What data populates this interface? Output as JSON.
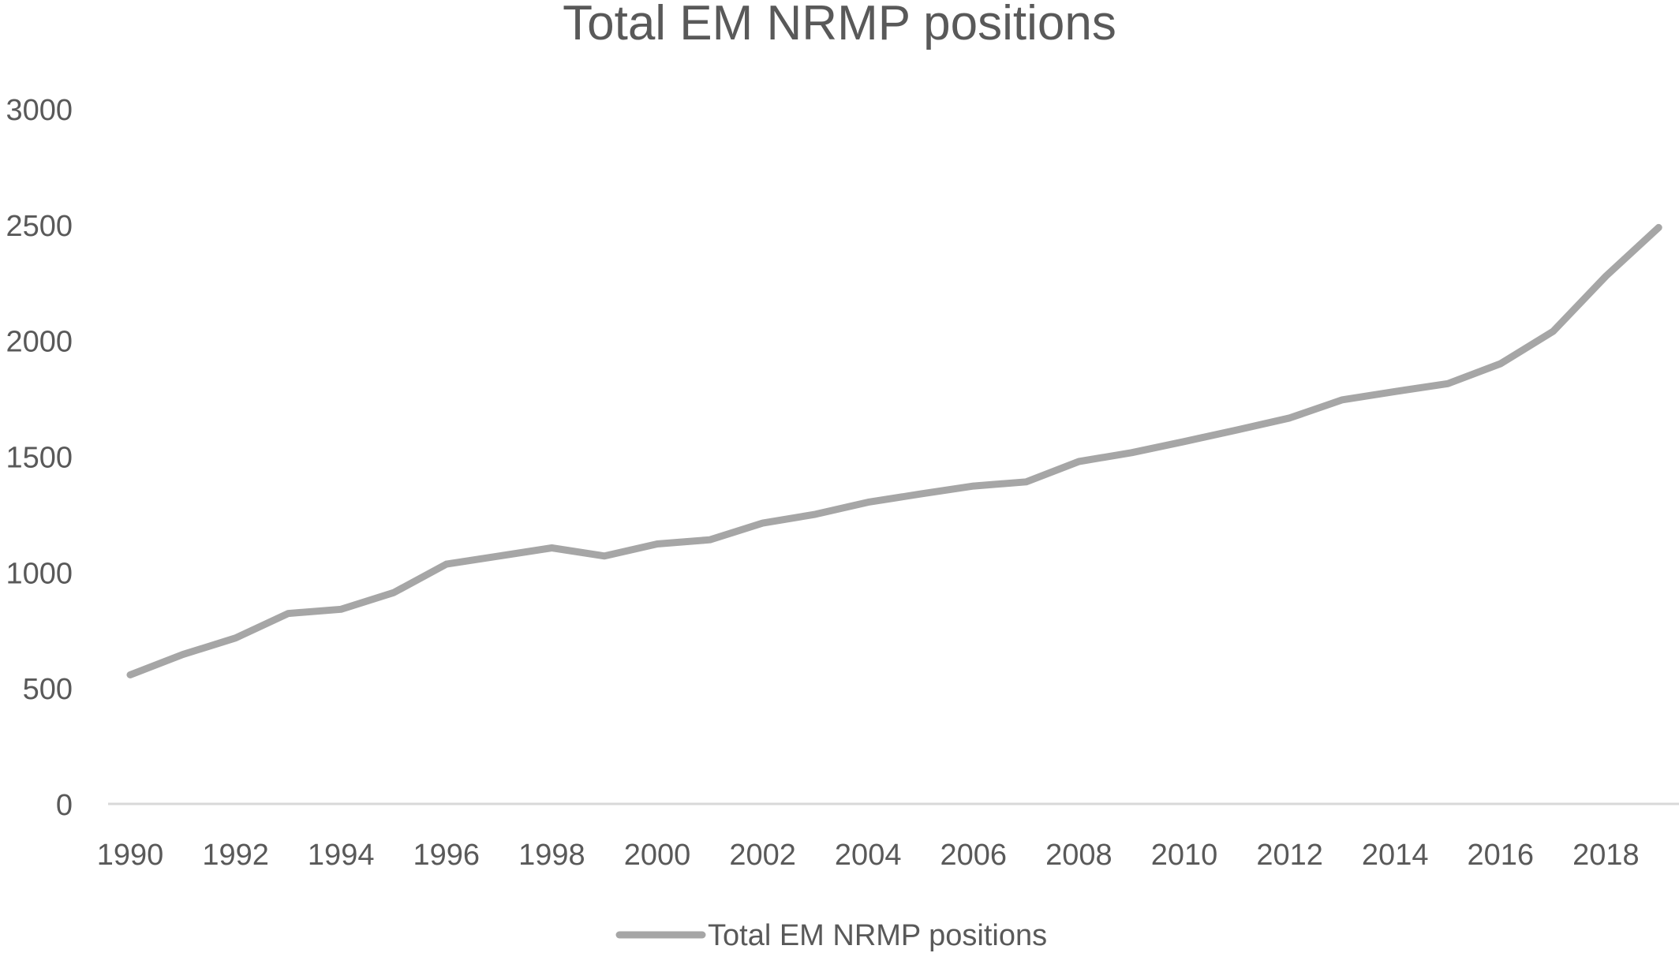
{
  "chart_data": {
    "type": "line",
    "title": "Total EM NRMP positions",
    "xlabel": "",
    "ylabel": "",
    "x": [
      1990,
      1991,
      1992,
      1993,
      1994,
      1995,
      1996,
      1997,
      1998,
      1999,
      2000,
      2001,
      2002,
      2003,
      2004,
      2005,
      2006,
      2007,
      2008,
      2009,
      2010,
      2011,
      2012,
      2013,
      2014,
      2015,
      2016,
      2017,
      2018,
      2019
    ],
    "x_tick_labels": [
      "1990",
      "1992",
      "1994",
      "1996",
      "1998",
      "2000",
      "2002",
      "2004",
      "2006",
      "2008",
      "2010",
      "2012",
      "2014",
      "2016",
      "2018"
    ],
    "y_tick_labels": [
      "0",
      "500",
      "1000",
      "1500",
      "2000",
      "2500",
      "3000"
    ],
    "ylim": [
      0,
      3000
    ],
    "grid": false,
    "legend_position": "bottom",
    "series": [
      {
        "name": "Total EM NRMP positions",
        "color": "#a6a6a6",
        "values": [
          557,
          645,
          716,
          822,
          840,
          912,
          1035,
          1070,
          1105,
          1070,
          1122,
          1140,
          1212,
          1250,
          1302,
          1338,
          1372,
          1390,
          1478,
          1516,
          1564,
          1614,
          1666,
          1744,
          1780,
          1814,
          1900,
          2040,
          2278,
          2488
        ]
      }
    ]
  }
}
